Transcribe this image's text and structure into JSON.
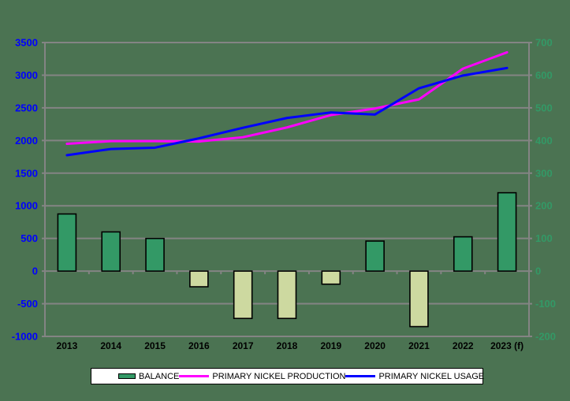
{
  "chart_data": {
    "type": "bar+line combo",
    "title": "",
    "categories": [
      "2013",
      "2014",
      "2015",
      "2016",
      "2017",
      "2018",
      "2019",
      "2020",
      "2021",
      "2022",
      "2023 (f)"
    ],
    "series": [
      {
        "name": "BALANCE",
        "type": "bar",
        "axis": "right",
        "values": [
          175,
          120,
          100,
          -48,
          -145,
          -145,
          -40,
          92,
          -170,
          105,
          240
        ]
      },
      {
        "name": "PRIMARY NICKEL PRODUCTION",
        "type": "line",
        "axis": "left",
        "values": [
          1950,
          1990,
          1990,
          1985,
          2050,
          2200,
          2390,
          2490,
          2630,
          3100,
          3350
        ]
      },
      {
        "name": "PRIMARY NICKEL USAGE",
        "type": "line",
        "axis": "left",
        "values": [
          1775,
          1870,
          1890,
          2033,
          2195,
          2345,
          2430,
          2398,
          2800,
          2995,
          3110
        ]
      }
    ],
    "left_axis": {
      "min": -1000,
      "max": 3500,
      "step": 500
    },
    "right_axis": {
      "min": -200,
      "max": 700,
      "step": 100
    },
    "grid": true,
    "legend_position": "bottom",
    "xlabel": "",
    "ylabel": ""
  },
  "colors": {
    "background": "#4B7352",
    "grid": "#848484",
    "bar_positive": "#339966",
    "bar_negative": "#CDD9A0",
    "bar_border": "#000000",
    "production_line": "#FF00FF",
    "usage_line": "#0000FF",
    "left_axis_labels": "#0000FF",
    "right_axis_labels": "#339966",
    "x_axis_labels": "#000000",
    "legend_background": "#FFFFFF",
    "legend_border": "#000000",
    "legend_text": "#000000"
  }
}
